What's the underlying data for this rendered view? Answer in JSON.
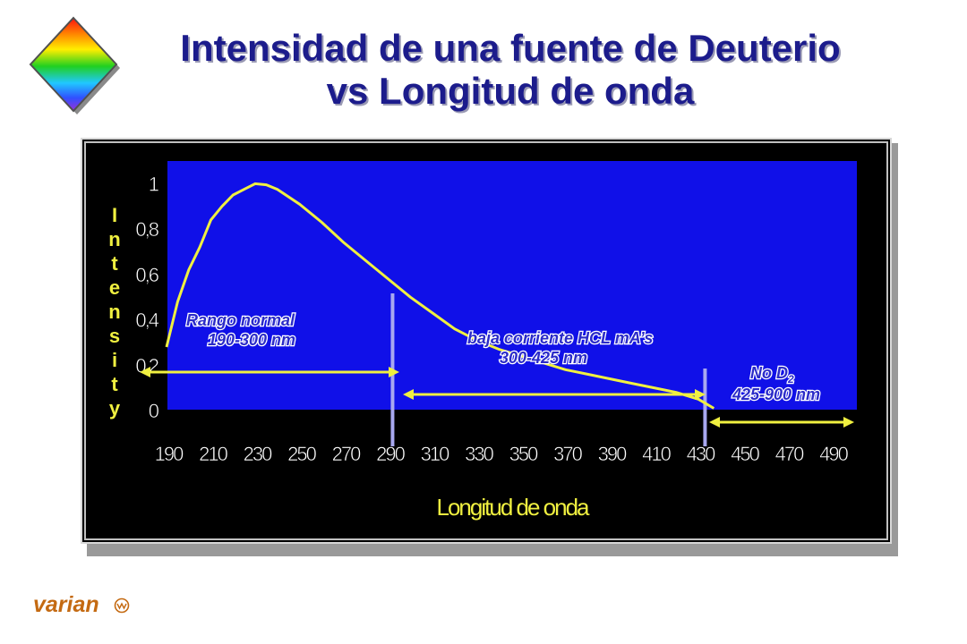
{
  "slide": {
    "title_line1": "Intensidad de una fuente de Deuterio",
    "title_line2": "vs Longitud de onda",
    "brand": "varian"
  },
  "colors": {
    "title": "#1c1c8c",
    "plot_background": "#1010e8",
    "curve": "#f0f040",
    "axis_text": "#f0f040",
    "tick_text": "#ffffff",
    "annotation_text": "#2b2bc8",
    "divider": "#a8a8f0",
    "panel": "#000000"
  },
  "chart_data": {
    "type": "line",
    "title": "",
    "xlabel": "Longitud de onda",
    "ylabel": "Intensity",
    "categories": [
      "190",
      "210",
      "230",
      "250",
      "270",
      "290",
      "310",
      "330",
      "350",
      "370",
      "390",
      "410",
      "430",
      "450",
      "470",
      "490"
    ],
    "yticks": [
      "0",
      "0,2",
      "0,4",
      "0,6",
      "0,8",
      "1"
    ],
    "ylim": [
      0,
      1.1
    ],
    "xlim": [
      190,
      500
    ],
    "grid": false,
    "series": [
      {
        "x": [
          190,
          195,
          200,
          205,
          210,
          215,
          220,
          225,
          230,
          235,
          240,
          250,
          260,
          270,
          280,
          290,
          300,
          310,
          320,
          330,
          340,
          350,
          360,
          370,
          380,
          390,
          400,
          410,
          420,
          430,
          437
        ],
        "y": [
          0.28,
          0.48,
          0.62,
          0.72,
          0.84,
          0.9,
          0.95,
          0.975,
          1.0,
          0.995,
          0.975,
          0.91,
          0.83,
          0.74,
          0.66,
          0.58,
          0.5,
          0.43,
          0.36,
          0.31,
          0.27,
          0.24,
          0.21,
          0.18,
          0.16,
          0.14,
          0.12,
          0.1,
          0.08,
          0.05,
          0.01
        ]
      }
    ],
    "dividers": [
      292,
      433
    ],
    "annotations": [
      {
        "line1": "Rango normal",
        "line2": "190-300 nm"
      },
      {
        "line1": "baja corriente  HCL mA’s",
        "line2": "300-425 nm"
      },
      {
        "line1": "No D",
        "sub": "2",
        "line2": "425-900 nm"
      }
    ]
  }
}
